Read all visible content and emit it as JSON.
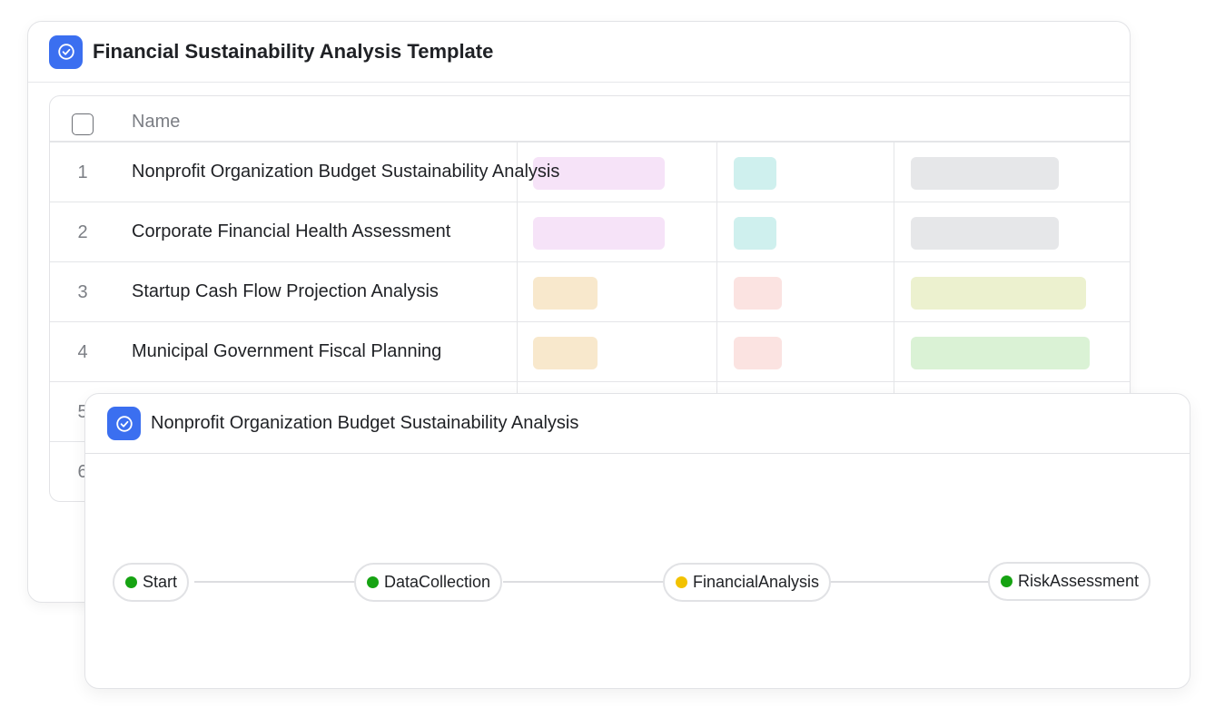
{
  "template_card": {
    "title": "Financial Sustainability Analysis Template",
    "icon": "check-circle-icon",
    "table": {
      "header": {
        "name_label": "Name"
      },
      "rows": [
        {
          "num": "1",
          "name": "Nonprofit Organization Budget Sustainability Analysis",
          "tags": [
            "#f6e3f8",
            "#cff0ee",
            "#e6e7e9"
          ]
        },
        {
          "num": "2",
          "name": "Corporate Financial Health Assessment",
          "tags": [
            "#f6e3f8",
            "#cff0ee",
            "#e6e7e9"
          ]
        },
        {
          "num": "3",
          "name": "Startup Cash Flow Projection Analysis",
          "tags": [
            "#f8e8cc",
            "#fbe3e1",
            "#ecf1cf"
          ]
        },
        {
          "num": "4",
          "name": "Municipal Government Fiscal Planning",
          "tags": [
            "#f8e8cc",
            "#fbe3e1",
            "#daf2d5"
          ]
        },
        {
          "num": "5"
        },
        {
          "num": "6"
        }
      ]
    }
  },
  "detail_card": {
    "title": "Nonprofit Organization Budget Sustainability Analysis",
    "icon": "check-circle-icon",
    "workflow": {
      "nodes": [
        {
          "label": "Start",
          "status_color": "#16a312"
        },
        {
          "label": "DataCollection",
          "status_color": "#16a312"
        },
        {
          "label": "FinancialAnalysis",
          "status_color": "#f2c200"
        },
        {
          "label": "RiskAssessment",
          "status_color": "#16a312"
        }
      ]
    }
  },
  "colors": {
    "accent": "#3b6ff0",
    "status_done": "#16a312",
    "status_in_progress": "#f2c200"
  }
}
